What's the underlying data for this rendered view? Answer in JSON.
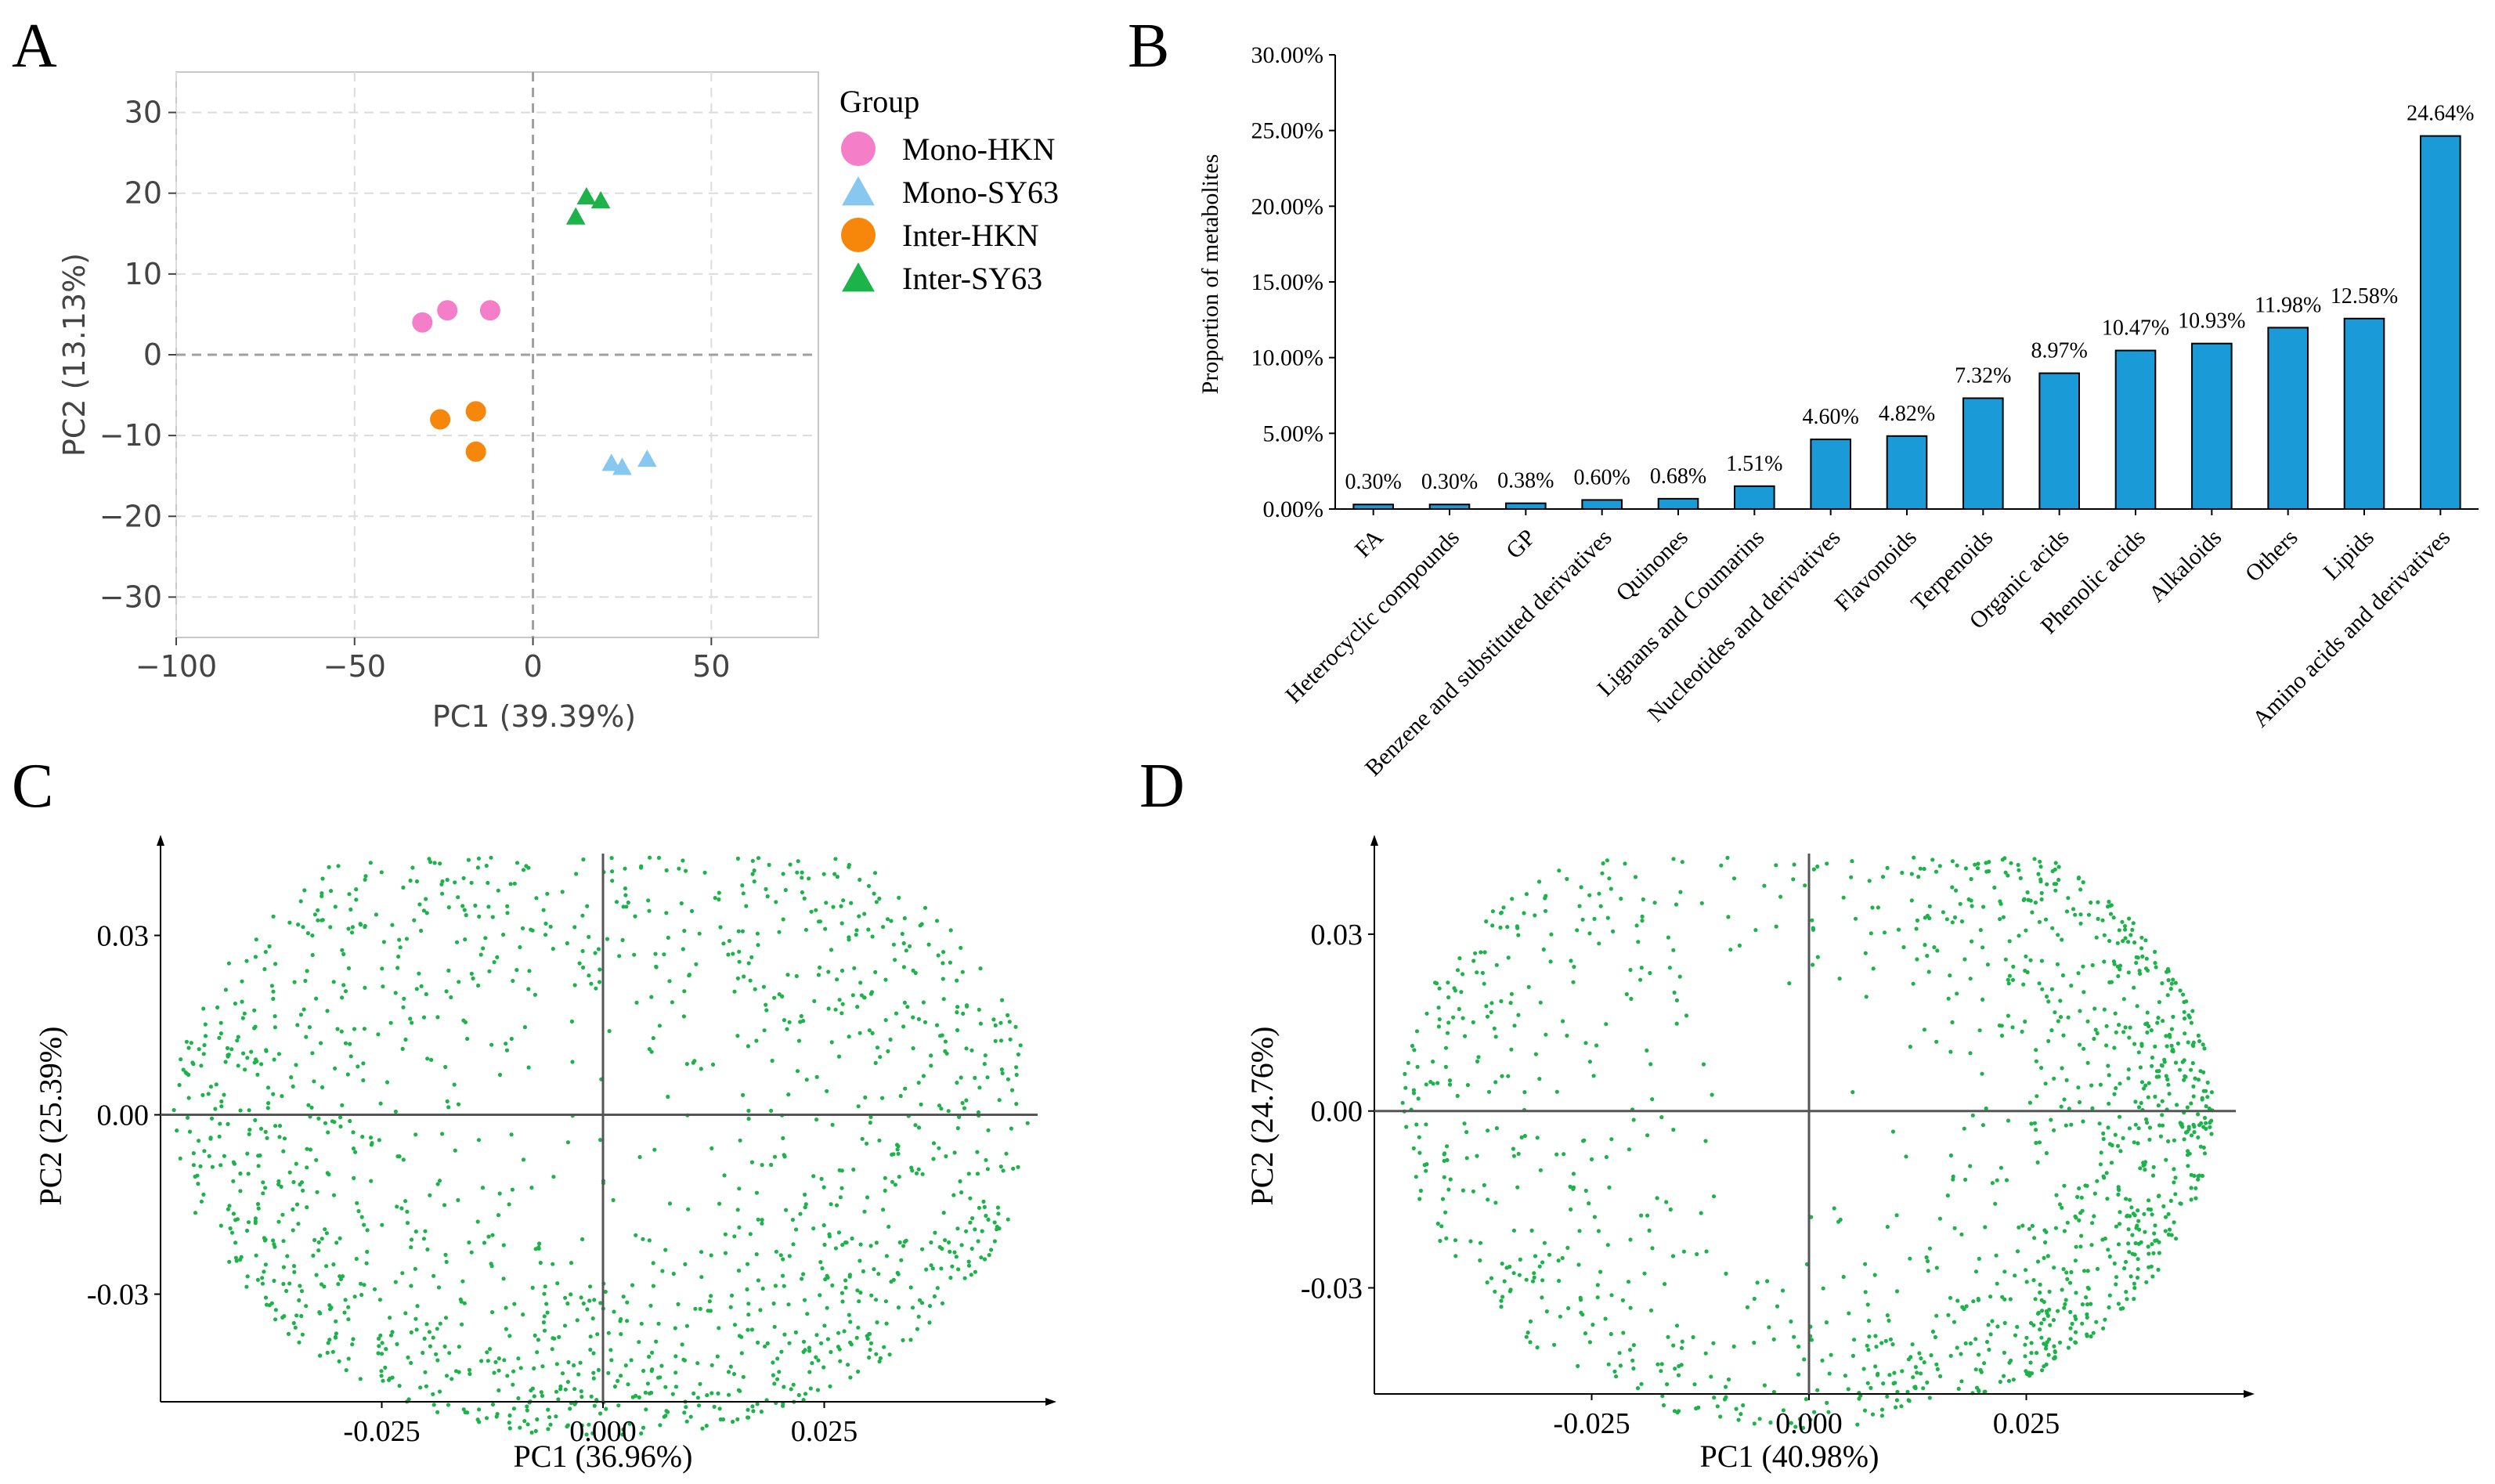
{
  "figure": {
    "panel_labels": [
      "A",
      "B",
      "C",
      "D"
    ]
  },
  "chart_data": [
    {
      "panel": "A",
      "type": "scatter",
      "title": "",
      "xlabel": "PC1 (39.39%)",
      "ylabel": "PC2 (13.13%)",
      "xlim": [
        -100,
        80
      ],
      "ylim": [
        -35,
        35
      ],
      "xticks": [
        -100,
        -50,
        0,
        50
      ],
      "xtick_labels": [
        "−100",
        "−50",
        "0",
        "50"
      ],
      "yticks": [
        30,
        20,
        10,
        0,
        -10,
        -20,
        -30
      ],
      "ytick_labels": [
        "30",
        "20",
        "10",
        "0",
        "−10",
        "−20",
        "−30"
      ],
      "grid": true,
      "legend": {
        "title": "Group",
        "placement": "right"
      },
      "series": [
        {
          "name": "Mono-HKN",
          "marker": "circle",
          "color": "#f47ec8",
          "points": [
            [
              -31,
              4
            ],
            [
              -24,
              5.5
            ],
            [
              -12,
              5.5
            ]
          ]
        },
        {
          "name": "Mono-SY63",
          "marker": "triangle",
          "color": "#88c8f0",
          "points": [
            [
              22,
              -13.5
            ],
            [
              25,
              -14
            ],
            [
              32,
              -13
            ]
          ]
        },
        {
          "name": "Inter-HKN",
          "marker": "circle",
          "color": "#f7870a",
          "points": [
            [
              -26,
              -8
            ],
            [
              -16,
              -7
            ],
            [
              -16,
              -12
            ]
          ]
        },
        {
          "name": "Inter-SY63",
          "marker": "triangle",
          "color": "#1db34b",
          "points": [
            [
              12,
              17
            ],
            [
              15,
              19.5
            ],
            [
              19,
              19
            ]
          ]
        }
      ]
    },
    {
      "panel": "B",
      "type": "bar",
      "title": "",
      "xlabel": "",
      "ylabel": "Proportion of metabolites",
      "ylim": [
        0,
        30
      ],
      "yticks": [
        0,
        5,
        10,
        15,
        20,
        25,
        30
      ],
      "ytick_labels": [
        "0.00%",
        "5.00%",
        "10.00%",
        "15.00%",
        "20.00%",
        "25.00%",
        "30.00%"
      ],
      "bar_color": "#1b9ad8",
      "categories": [
        "FA",
        "Heterocyclic compounds",
        "GP",
        "Benzene and substituted derivatives",
        "Quinones",
        "Lignans and Coumarins",
        "Nucleotides and derivatives",
        "Flavonoids",
        "Terpenoids",
        "Organic acids",
        "Phenolic acids",
        "Alkaloids",
        "Others",
        "Lipids",
        "Amino acids and derivatives"
      ],
      "values": [
        0.3,
        0.3,
        0.38,
        0.6,
        0.68,
        1.51,
        4.6,
        4.82,
        7.32,
        8.97,
        10.47,
        10.93,
        11.98,
        12.58,
        24.64
      ],
      "value_labels": [
        "0.30%",
        "0.30%",
        "0.38%",
        "0.60%",
        "0.68%",
        "1.51%",
        "4.60%",
        "4.82%",
        "7.32%",
        "8.97%",
        "10.47%",
        "10.93%",
        "11.98%",
        "12.58%",
        "24.64%"
      ]
    },
    {
      "panel": "C",
      "type": "scatter",
      "title": "",
      "xlabel": "PC1 (36.96%)",
      "ylabel": "PC2 (25.39%)",
      "xlim": [
        -0.05,
        0.05
      ],
      "ylim": [
        -0.048,
        0.045
      ],
      "xticks": [
        -0.025,
        0.0,
        0.025
      ],
      "xtick_labels": [
        "-0.025",
        "0.000",
        "0.025"
      ],
      "yticks": [
        0.03,
        0.0,
        -0.03
      ],
      "ytick_labels": [
        "0.03",
        "0.00",
        "-0.03"
      ],
      "grid": false,
      "point_color": "#1db34b",
      "point_count": 1500,
      "distribution": {
        "x_range": [
          -0.0485,
          0.0485
        ],
        "y_range": [
          -0.054,
          0.054
        ],
        "description": "points densely fill an ellipse, denser along the lower-right rim"
      }
    },
    {
      "panel": "D",
      "type": "scatter",
      "title": "",
      "xlabel": "PC1 (40.98%)",
      "ylabel": "PC2 (24.76%)",
      "xlim": [
        -0.05,
        0.05
      ],
      "ylim": [
        -0.048,
        0.045
      ],
      "xticks": [
        -0.025,
        0.0,
        0.025
      ],
      "xtick_labels": [
        "-0.025",
        "0.000",
        "0.025"
      ],
      "yticks": [
        0.03,
        0.0,
        -0.03
      ],
      "ytick_labels": [
        "0.03",
        "0.00",
        "-0.03"
      ],
      "grid": false,
      "point_color": "#1db34b",
      "point_count": 1300,
      "distribution": {
        "x_range": [
          -0.047,
          0.0465
        ],
        "y_range": [
          -0.054,
          0.054
        ],
        "description": "points fill an ellipse, very dense along the right rim"
      }
    }
  ]
}
